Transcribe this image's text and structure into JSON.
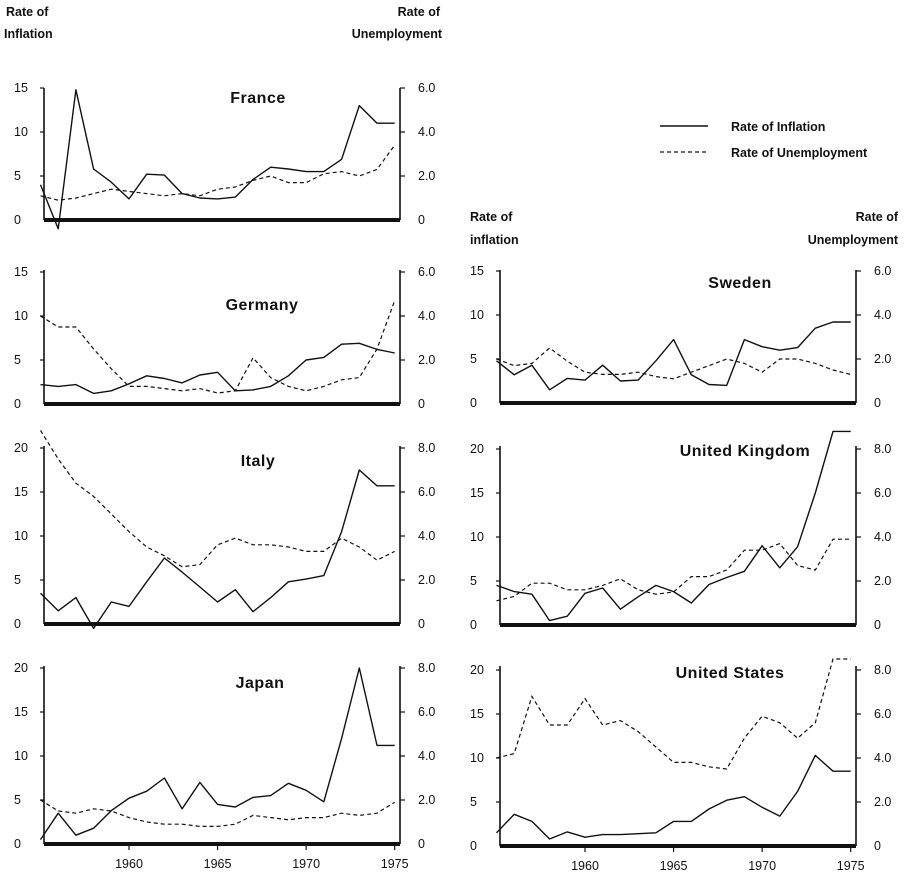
{
  "headers": {
    "left_inflation": [
      "Rate of",
      "Inflation"
    ],
    "left_unemployment": [
      "Rate of",
      "Unemployment"
    ],
    "right_inflation": [
      "Rate of",
      "inflation"
    ],
    "right_unemployment": [
      "Rate of",
      "Unemployment"
    ]
  },
  "legend": {
    "inflation_label": "Rate of Inflation",
    "unemployment_label": "Rate of Unemployment"
  },
  "x_ticks": [
    "1960",
    "1965",
    "1970",
    "1975"
  ],
  "chart_data": [
    {
      "type": "line",
      "title": "France",
      "x": [
        1955,
        1956,
        1957,
        1958,
        1959,
        1960,
        1961,
        1962,
        1963,
        1964,
        1965,
        1966,
        1967,
        1968,
        1969,
        1970,
        1971,
        1972,
        1973,
        1974,
        1975
      ],
      "series": [
        {
          "name": "Rate of Inflation",
          "values": [
            4.0,
            -1.0,
            14.8,
            5.8,
            4.3,
            2.4,
            5.2,
            5.1,
            3.0,
            2.5,
            2.4,
            2.6,
            4.6,
            6.0,
            5.8,
            5.5,
            5.5,
            6.9,
            13.0,
            11.0,
            11.0
          ]
        },
        {
          "name": "Rate of Unemployment",
          "values": [
            1.1,
            0.9,
            1.0,
            1.2,
            1.4,
            1.3,
            1.2,
            1.1,
            1.2,
            1.1,
            1.4,
            1.5,
            1.8,
            2.0,
            1.7,
            1.7,
            2.1,
            2.2,
            2.0,
            2.3,
            3.4
          ]
        }
      ],
      "inflation_ticks": [
        "0",
        "5",
        "10",
        "15"
      ],
      "unemployment_ticks": [
        "0",
        "2.0",
        "4.0",
        "6.0"
      ],
      "ylim_inflation": [
        0,
        15
      ],
      "ylim_unemployment": [
        0,
        6
      ]
    },
    {
      "type": "line",
      "title": "Germany",
      "x": [
        1955,
        1956,
        1957,
        1958,
        1959,
        1960,
        1961,
        1962,
        1963,
        1964,
        1965,
        1966,
        1967,
        1968,
        1969,
        1970,
        1971,
        1972,
        1973,
        1974,
        1975
      ],
      "series": [
        {
          "name": "Rate of Inflation",
          "values": [
            2.2,
            2.0,
            2.2,
            1.2,
            1.5,
            2.3,
            3.2,
            2.9,
            2.4,
            3.3,
            3.6,
            1.5,
            1.6,
            2.0,
            3.2,
            5.0,
            5.3,
            6.8,
            6.9,
            6.2,
            5.8
          ]
        },
        {
          "name": "Rate of Unemployment",
          "values": [
            4.0,
            3.5,
            3.5,
            2.5,
            1.6,
            0.8,
            0.8,
            0.7,
            0.6,
            0.7,
            0.5,
            0.6,
            2.1,
            1.2,
            0.8,
            0.6,
            0.8,
            1.1,
            1.2,
            2.5,
            4.7
          ]
        }
      ],
      "inflation_ticks": [
        "0",
        "5",
        "10",
        "15"
      ],
      "unemployment_ticks": [
        "0",
        "2.0",
        "4.0",
        "6.0"
      ],
      "ylim_inflation": [
        0,
        15
      ],
      "ylim_unemployment": [
        0,
        6
      ]
    },
    {
      "type": "line",
      "title": "Italy",
      "x": [
        1955,
        1956,
        1957,
        1958,
        1959,
        1960,
        1961,
        1962,
        1963,
        1964,
        1965,
        1966,
        1967,
        1968,
        1969,
        1970,
        1971,
        1972,
        1973,
        1974,
        1975
      ],
      "series": [
        {
          "name": "Rate of Inflation",
          "values": [
            3.5,
            1.5,
            3.0,
            -0.5,
            2.5,
            2.0,
            4.8,
            7.5,
            5.9,
            4.2,
            2.5,
            3.9,
            1.4,
            3.0,
            4.8,
            5.1,
            5.5,
            10.5,
            17.5,
            15.7,
            15.7
          ]
        },
        {
          "name": "Rate of Unemployment",
          "values": [
            8.8,
            7.5,
            6.4,
            5.8,
            5.0,
            4.2,
            3.5,
            3.1,
            2.6,
            2.7,
            3.6,
            3.9,
            3.6,
            3.6,
            3.5,
            3.3,
            3.3,
            3.9,
            3.5,
            2.9,
            3.3
          ]
        }
      ],
      "inflation_ticks": [
        "0",
        "5",
        "10",
        "15",
        "20"
      ],
      "unemployment_ticks": [
        "0",
        "2.0",
        "4.0",
        "6.0",
        "8.0"
      ],
      "ylim_inflation": [
        0,
        20
      ],
      "ylim_unemployment": [
        0,
        8
      ]
    },
    {
      "type": "line",
      "title": "Japan",
      "x": [
        1955,
        1956,
        1957,
        1958,
        1959,
        1960,
        1961,
        1962,
        1963,
        1964,
        1965,
        1966,
        1967,
        1968,
        1969,
        1970,
        1971,
        1972,
        1973,
        1974,
        1975
      ],
      "series": [
        {
          "name": "Rate of Inflation",
          "values": [
            0.5,
            3.5,
            1.0,
            1.8,
            3.8,
            5.2,
            6.0,
            7.5,
            4.0,
            7.0,
            4.5,
            4.2,
            5.3,
            5.5,
            6.9,
            6.1,
            4.8,
            12.0,
            20.0,
            11.2,
            11.2
          ]
        },
        {
          "name": "Rate of Unemployment",
          "values": [
            2.0,
            1.5,
            1.4,
            1.6,
            1.5,
            1.2,
            1.0,
            0.9,
            0.9,
            0.8,
            0.8,
            0.9,
            1.3,
            1.2,
            1.1,
            1.2,
            1.2,
            1.4,
            1.3,
            1.4,
            1.9
          ]
        }
      ],
      "inflation_ticks": [
        "0",
        "5",
        "10",
        "15",
        "20"
      ],
      "unemployment_ticks": [
        "0",
        "2.0",
        "4.0",
        "6.0",
        "8.0"
      ],
      "ylim_inflation": [
        0,
        20
      ],
      "ylim_unemployment": [
        0,
        8
      ]
    },
    {
      "type": "line",
      "title": "Sweden",
      "x": [
        1955,
        1956,
        1957,
        1958,
        1959,
        1960,
        1961,
        1962,
        1963,
        1964,
        1965,
        1966,
        1967,
        1968,
        1969,
        1970,
        1971,
        1972,
        1973,
        1974,
        1975
      ],
      "series": [
        {
          "name": "Rate of Inflation",
          "values": [
            4.8,
            3.2,
            4.3,
            1.5,
            2.8,
            2.6,
            4.3,
            2.5,
            2.6,
            4.8,
            7.2,
            3.2,
            2.1,
            2.0,
            7.2,
            6.4,
            6.0,
            6.3,
            8.5,
            9.2,
            9.2
          ]
        },
        {
          "name": "Rate of Unemployment",
          "values": [
            2.0,
            1.7,
            1.8,
            2.5,
            1.9,
            1.4,
            1.3,
            1.3,
            1.4,
            1.2,
            1.1,
            1.4,
            1.7,
            2.0,
            1.8,
            1.4,
            2.0,
            2.0,
            1.8,
            1.5,
            1.3
          ]
        }
      ],
      "inflation_ticks": [
        "0",
        "5",
        "10",
        "15"
      ],
      "unemployment_ticks": [
        "0",
        "2.0",
        "4.0",
        "6.0"
      ],
      "ylim_inflation": [
        0,
        15
      ],
      "ylim_unemployment": [
        0,
        6
      ]
    },
    {
      "type": "line",
      "title": "United Kingdom",
      "x": [
        1955,
        1956,
        1957,
        1958,
        1959,
        1960,
        1961,
        1962,
        1963,
        1964,
        1965,
        1966,
        1967,
        1968,
        1969,
        1970,
        1971,
        1972,
        1973,
        1974,
        1975
      ],
      "series": [
        {
          "name": "Rate of Inflation",
          "values": [
            4.5,
            3.8,
            3.5,
            0.5,
            1.0,
            3.6,
            4.2,
            1.8,
            3.2,
            4.5,
            3.8,
            2.5,
            4.6,
            5.4,
            6.1,
            9.0,
            6.5,
            8.9,
            15.0,
            22.0,
            22.0
          ]
        },
        {
          "name": "Rate of Unemployment",
          "values": [
            1.1,
            1.3,
            1.9,
            1.9,
            1.6,
            1.6,
            1.8,
            2.1,
            1.6,
            1.4,
            1.5,
            2.2,
            2.2,
            2.5,
            3.4,
            3.4,
            3.7,
            2.7,
            2.5,
            3.9,
            3.9
          ]
        }
      ],
      "inflation_ticks": [
        "0",
        "5",
        "10",
        "15",
        "20"
      ],
      "unemployment_ticks": [
        "0",
        "2.0",
        "4.0",
        "6.0",
        "8.0"
      ],
      "ylim_inflation": [
        0,
        20
      ],
      "ylim_unemployment": [
        0,
        8
      ]
    },
    {
      "type": "line",
      "title": "United States",
      "x": [
        1955,
        1956,
        1957,
        1958,
        1959,
        1960,
        1961,
        1962,
        1963,
        1964,
        1965,
        1966,
        1967,
        1968,
        1969,
        1970,
        1971,
        1972,
        1973,
        1974,
        1975
      ],
      "series": [
        {
          "name": "Rate of Inflation",
          "values": [
            1.5,
            3.6,
            2.8,
            0.8,
            1.6,
            1.0,
            1.3,
            1.3,
            1.4,
            1.5,
            2.8,
            2.8,
            4.2,
            5.2,
            5.6,
            4.4,
            3.4,
            6.2,
            10.3,
            8.5,
            8.5
          ]
        },
        {
          "name": "Rate of Unemployment",
          "values": [
            4.0,
            4.2,
            6.8,
            5.5,
            5.5,
            6.7,
            5.5,
            5.7,
            5.2,
            4.5,
            3.8,
            3.8,
            3.6,
            3.5,
            4.9,
            5.9,
            5.6,
            4.9,
            5.6,
            8.5,
            8.5
          ]
        }
      ],
      "inflation_ticks": [
        "0",
        "5",
        "10",
        "15",
        "20"
      ],
      "unemployment_ticks": [
        "0",
        "2.0",
        "4.0",
        "6.0",
        "8.0"
      ],
      "ylim_inflation": [
        0,
        20
      ],
      "ylim_unemployment": [
        0,
        8
      ]
    }
  ]
}
